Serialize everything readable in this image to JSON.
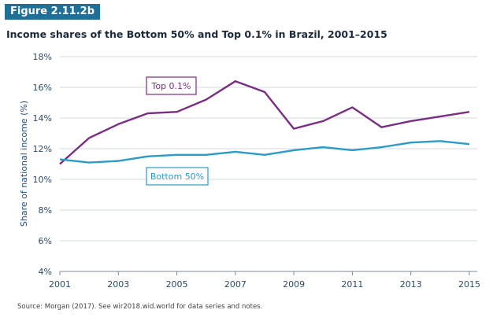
{
  "figure_label": "Figure 2.11.2b",
  "source": "Source:  Morgan (2017). See wir2018.wid.world for data series and notes.",
  "chart_data": {
    "type": "line",
    "title": "Income shares of the Bottom 50% and Top 0.1% in Brazil, 2001–2015",
    "xlabel": "",
    "ylabel": "Share of national income (%)",
    "x": [
      2001,
      2002,
      2003,
      2004,
      2005,
      2006,
      2007,
      2008,
      2009,
      2010,
      2011,
      2012,
      2013,
      2014,
      2015
    ],
    "xlim": [
      2001,
      2015
    ],
    "ylim": [
      4,
      18
    ],
    "x_ticks": [
      "2001",
      "2003",
      "2005",
      "2007",
      "2009",
      "2011",
      "2013",
      "2015"
    ],
    "y_ticks": [
      "4%",
      "6%",
      "8%",
      "10%",
      "12%",
      "14%",
      "16%",
      "18%"
    ],
    "grid": true,
    "series": [
      {
        "name": "Top 0.1%",
        "color": "#7b2c83",
        "values": [
          11.0,
          12.7,
          13.6,
          14.3,
          14.4,
          15.2,
          16.4,
          15.7,
          13.3,
          13.8,
          14.7,
          13.4,
          13.8,
          14.1,
          14.4
        ]
      },
      {
        "name": "Bottom 50%",
        "color": "#2a9cc8",
        "values": [
          11.3,
          11.1,
          11.2,
          11.5,
          11.6,
          11.6,
          11.8,
          11.6,
          11.9,
          12.1,
          11.9,
          12.1,
          12.4,
          12.5,
          12.3
        ]
      }
    ]
  }
}
